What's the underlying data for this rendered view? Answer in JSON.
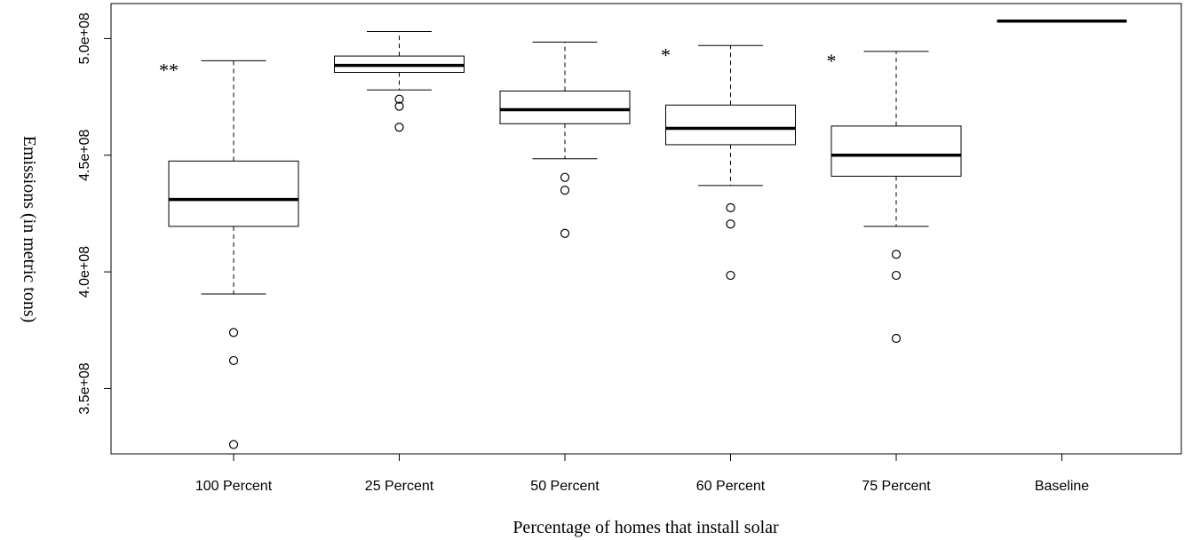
{
  "chart_data": {
    "type": "boxplot",
    "title": "",
    "xlabel": "Percentage of homes that install solar",
    "ylabel": "Emissions (in metric tons)",
    "ylim": [
      322000000,
      515000000
    ],
    "y_ticks": [
      350000000,
      400000000,
      450000000,
      500000000
    ],
    "y_tick_labels": [
      "3.5e+08",
      "4.0e+08",
      "4.5e+08",
      "5.0e+08"
    ],
    "grid": false,
    "categories": [
      "100 Percent",
      "25 Percent",
      "50 Percent",
      "60 Percent",
      "75 Percent",
      "Baseline"
    ],
    "boxes": [
      {
        "category": "100 Percent",
        "whisker_low": 390500000,
        "q1": 419500000,
        "median": 431000000,
        "q3": 447500000,
        "whisker_high": 490500000,
        "outliers": [
          326000000,
          362000000,
          374000000
        ],
        "annotation": "**"
      },
      {
        "category": "25 Percent",
        "whisker_low": 478000000,
        "q1": 485500000,
        "median": 488500000,
        "q3": 492500000,
        "whisker_high": 503000000,
        "outliers": [
          462000000,
          471000000,
          474000000
        ],
        "annotation": ""
      },
      {
        "category": "50 Percent",
        "whisker_low": 448500000,
        "q1": 463500000,
        "median": 469500000,
        "q3": 477500000,
        "whisker_high": 498500000,
        "outliers": [
          416500000,
          435000000,
          440500000
        ],
        "annotation": ""
      },
      {
        "category": "60 Percent",
        "whisker_low": 437000000,
        "q1": 454500000,
        "median": 461500000,
        "q3": 471500000,
        "whisker_high": 497000000,
        "outliers": [
          398500000,
          420500000,
          427500000
        ],
        "annotation": "*"
      },
      {
        "category": "75 Percent",
        "whisker_low": 419500000,
        "q1": 441000000,
        "median": 450000000,
        "q3": 462500000,
        "whisker_high": 494500000,
        "outliers": [
          371500000,
          398500000,
          407500000
        ],
        "annotation": "*"
      },
      {
        "category": "Baseline",
        "whisker_low": 507500000,
        "q1": 507500000,
        "median": 507500000,
        "q3": 507500000,
        "whisker_high": 507500000,
        "outliers": [],
        "annotation": ""
      }
    ]
  }
}
